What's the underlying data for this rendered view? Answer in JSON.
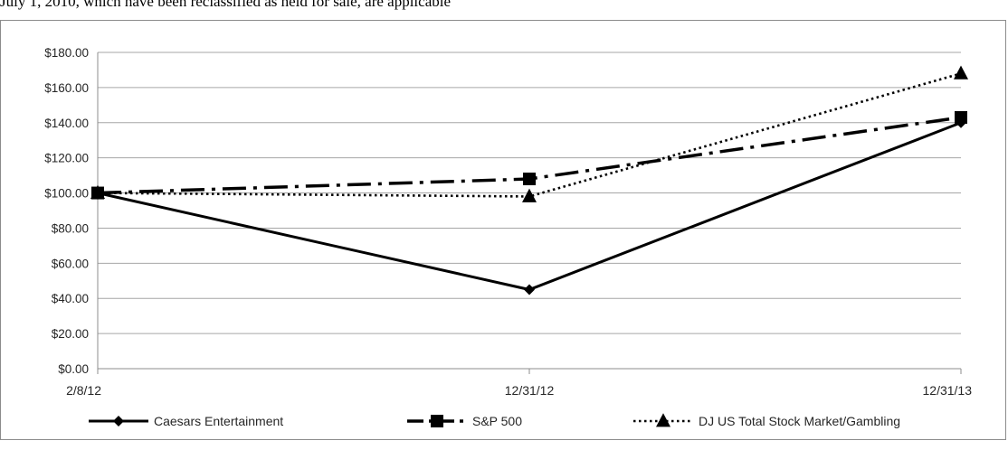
{
  "header_text": "July 1, 2010, which have been reclassified as held for sale, are applicable",
  "chart_data": {
    "type": "line",
    "title": "",
    "xlabel": "",
    "ylabel": "",
    "categories": [
      "2/8/12",
      "12/31/12",
      "12/31/13"
    ],
    "ylim": [
      0,
      180
    ],
    "y_ticks": [
      "$0.00",
      "$20.00",
      "$40.00",
      "$60.00",
      "$80.00",
      "$100.00",
      "$120.00",
      "$140.00",
      "$160.00",
      "$180.00"
    ],
    "grid": true,
    "legend_position": "bottom",
    "series": [
      {
        "name": "Caesars Entertainment",
        "values": [
          100,
          45,
          140
        ],
        "marker": "diamond",
        "dash": "solid",
        "color": "#000000"
      },
      {
        "name": "S&P 500",
        "values": [
          100,
          108,
          143
        ],
        "marker": "square",
        "dash": "dash-dot",
        "color": "#000000"
      },
      {
        "name": "DJ US Total Stock Market/Gambling",
        "values": [
          100,
          98,
          168
        ],
        "marker": "triangle",
        "dash": "dotted",
        "color": "#000000"
      }
    ]
  }
}
